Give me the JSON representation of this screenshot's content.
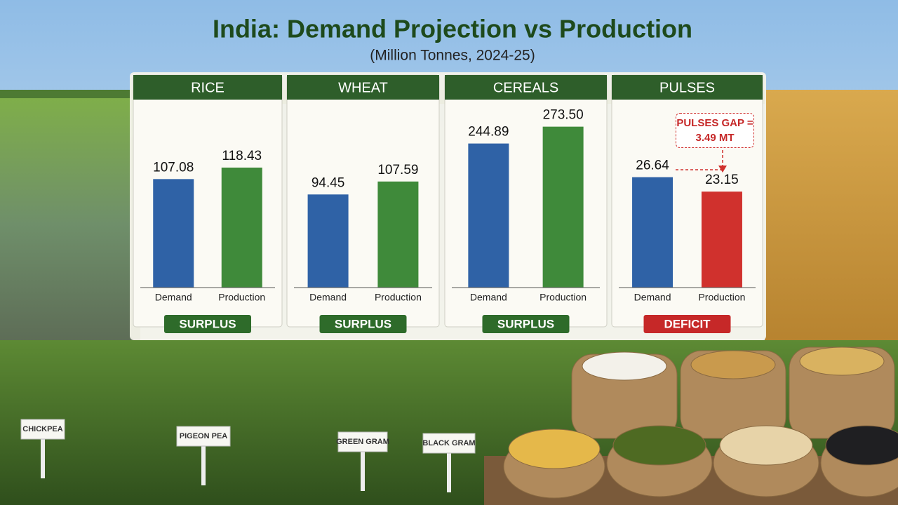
{
  "header": {
    "title": "India: Demand Projection vs Production",
    "subtitle": "(Million Tonnes, 2024-25)"
  },
  "chart_data": [
    {
      "type": "bar",
      "title": "RICE",
      "categories": [
        "Demand",
        "Production"
      ],
      "values": [
        107.08,
        118.43
      ],
      "value_labels": [
        "107.08",
        "118.43"
      ],
      "colors": [
        "#2f62a6",
        "#3f8a3a"
      ],
      "ylim": [
        0,
        180
      ],
      "status": "SURPLUS",
      "status_color": "#2e6b2a"
    },
    {
      "type": "bar",
      "title": "WHEAT",
      "categories": [
        "Demand",
        "Production"
      ],
      "values": [
        94.45,
        107.59
      ],
      "value_labels": [
        "94.45",
        "107.59"
      ],
      "colors": [
        "#2f62a6",
        "#3f8a3a"
      ],
      "ylim": [
        0,
        185
      ],
      "status": "SURPLUS",
      "status_color": "#2e6b2a"
    },
    {
      "type": "bar",
      "title": "CEREALS",
      "categories": [
        "Demand",
        "Production"
      ],
      "values": [
        244.89,
        273.5
      ],
      "value_labels": [
        "244.89",
        "273.50"
      ],
      "colors": [
        "#2f62a6",
        "#3f8a3a"
      ],
      "ylim": [
        0,
        310
      ],
      "status": "SURPLUS",
      "status_color": "#2e6b2a"
    },
    {
      "type": "bar",
      "title": "PULSES",
      "categories": [
        "Demand",
        "Production"
      ],
      "values": [
        26.64,
        23.15
      ],
      "value_labels": [
        "26.64",
        "23.15"
      ],
      "colors": [
        "#2f62a6",
        "#d0312d"
      ],
      "ylim": [
        0,
        44
      ],
      "status": "DEFICIT",
      "status_color": "#c62828",
      "annotation": "PULSES GAP = 3.49 MT"
    }
  ],
  "plant_labels": [
    "CHICKPEA",
    "PIGEON PEA",
    "GREEN GRAM",
    "BLACK GRAM"
  ]
}
